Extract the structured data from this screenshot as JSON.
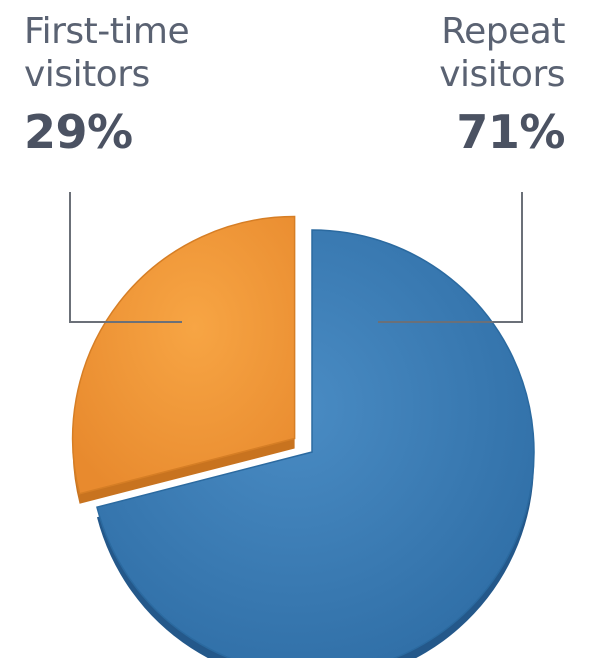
{
  "chart_data": {
    "type": "pie",
    "categories": [
      "First-time visitors",
      "Repeat visitors"
    ],
    "values": [
      29,
      71
    ],
    "labels": [
      {
        "lines": [
          "First-time",
          "visitors"
        ],
        "value_label": "29%"
      },
      {
        "lines": [
          "Repeat",
          "visitors"
        ],
        "value_label": "71%"
      }
    ],
    "exploded": "First-time visitors",
    "colors": {
      "first_time": "#f0973a",
      "repeat": "#3d7fb8",
      "leader": "#6b7078",
      "text": "#5a6272"
    },
    "title": "",
    "legend": "none"
  }
}
